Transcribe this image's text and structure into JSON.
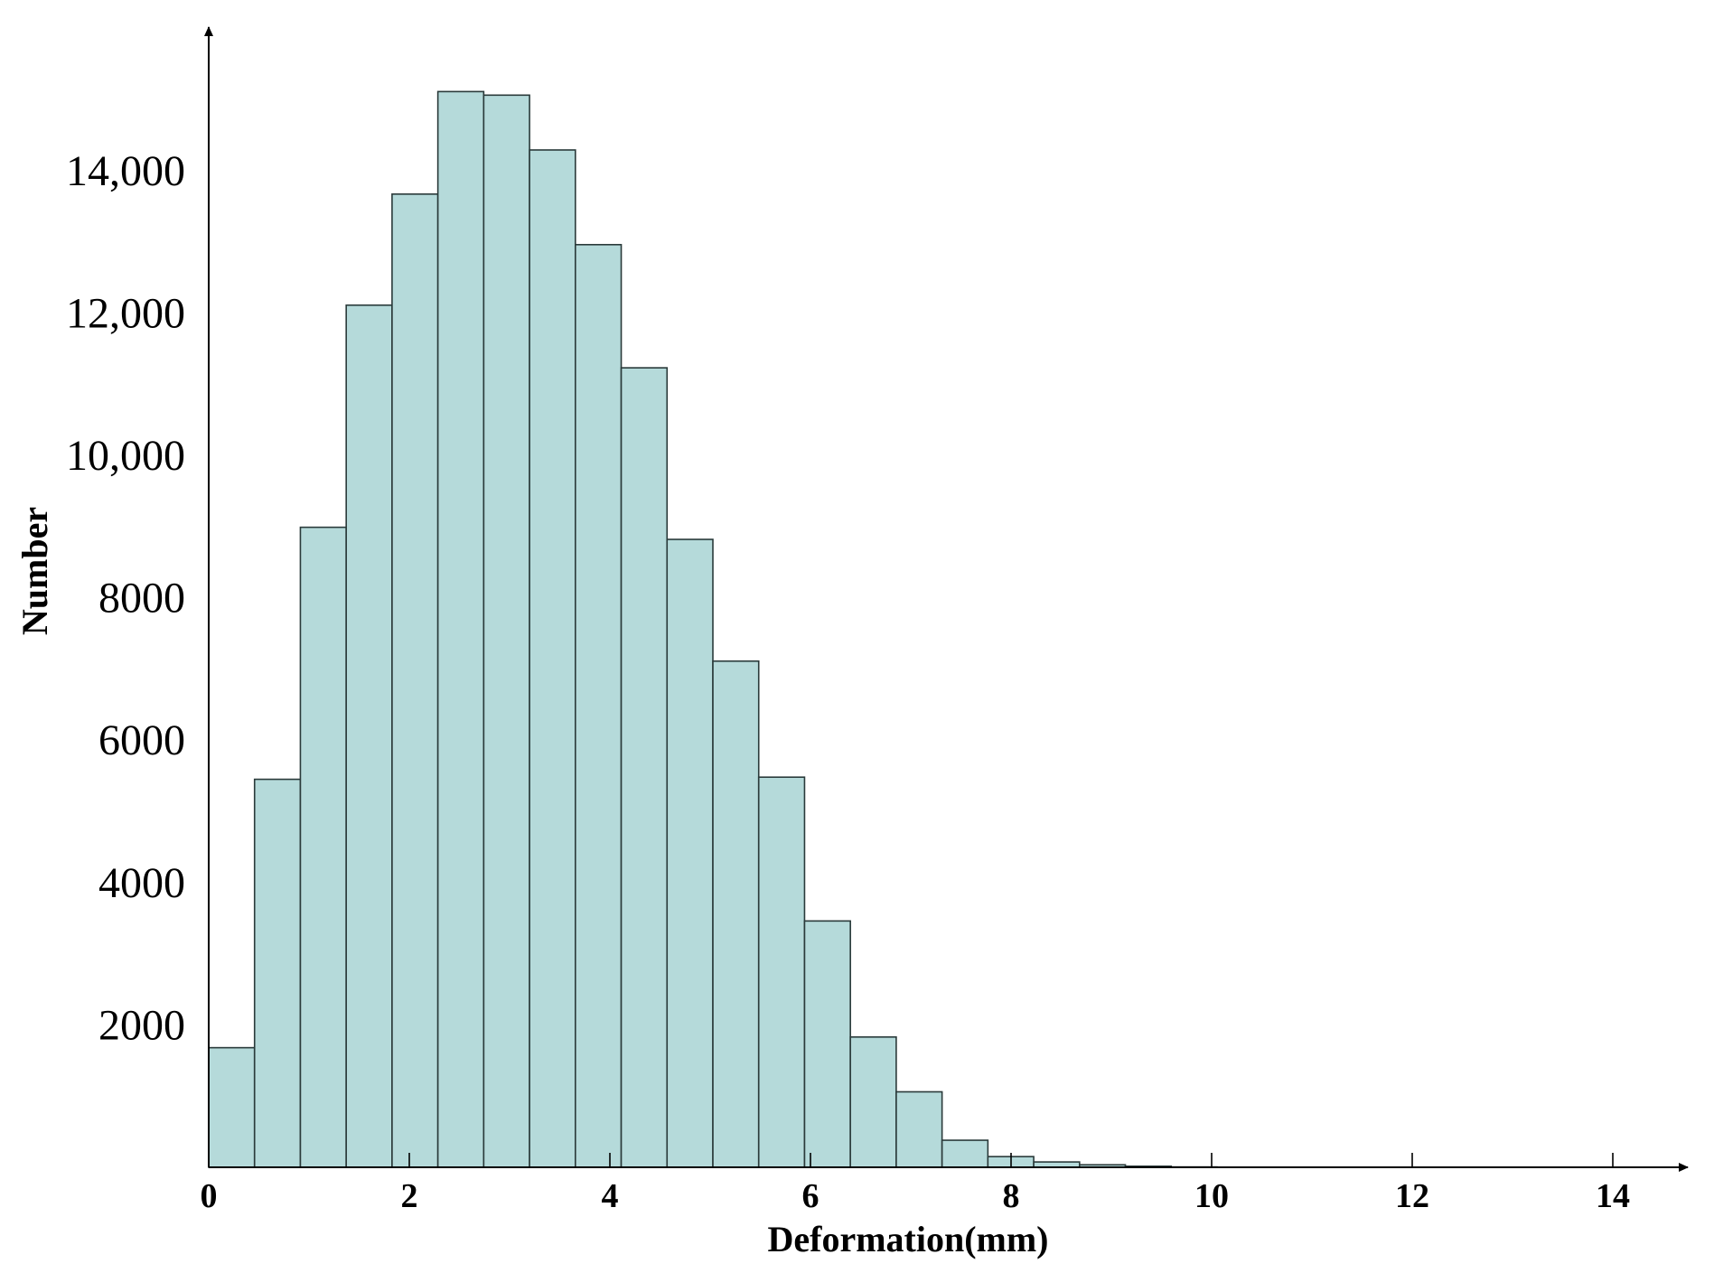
{
  "chart_data": {
    "type": "bar",
    "title": "",
    "xlabel": "Deformation(mm)",
    "ylabel": "Number",
    "bin_edges": [
      0,
      0.457,
      0.914,
      1.371,
      1.828,
      2.285,
      2.742,
      3.199,
      3.656,
      4.113,
      4.57,
      5.027,
      5.484,
      5.941,
      6.398,
      6.855,
      7.312,
      7.769,
      8.226,
      8.683,
      9.14,
      9.597,
      10.054
    ],
    "values": [
      1680,
      5450,
      8990,
      12110,
      13670,
      15110,
      15060,
      14290,
      12960,
      11230,
      8820,
      7110,
      5480,
      3460,
      1830,
      1060,
      380,
      150,
      75,
      35,
      15,
      5
    ],
    "xticks": [
      0,
      2,
      4,
      6,
      8,
      10,
      12,
      14
    ],
    "xtick_labels": [
      "0",
      "2",
      "4",
      "6",
      "8",
      "10",
      "12",
      "14"
    ],
    "yticks": [
      2000,
      4000,
      6000,
      8000,
      10000,
      12000,
      14000
    ],
    "ytick_labels": [
      "2000",
      "4000",
      "6000",
      "8000",
      "10,000",
      "12,000",
      "14,000"
    ],
    "xlim": [
      0,
      14.8
    ],
    "ylim": [
      0,
      15800
    ],
    "grid": false,
    "bar_color": "#b5dada",
    "edge_color": "#2a3a3a"
  }
}
